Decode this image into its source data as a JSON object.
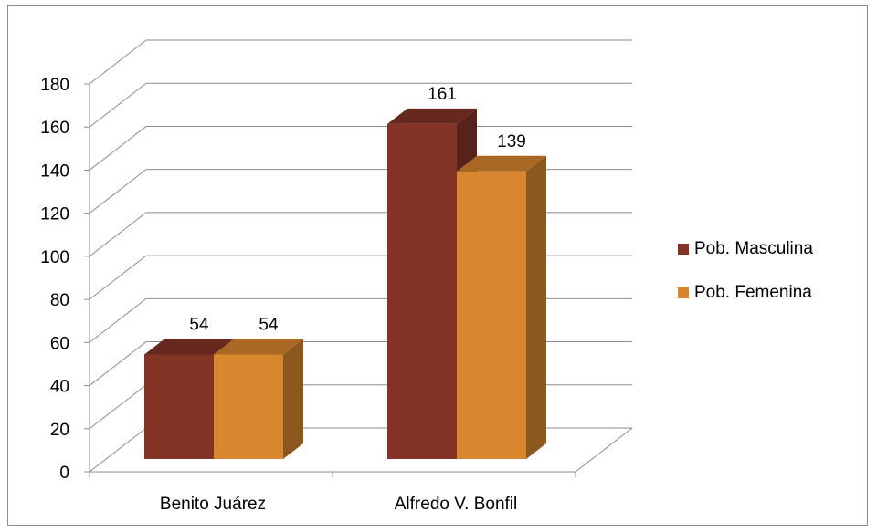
{
  "chart_data": {
    "type": "bar",
    "categories": [
      "Benito Juárez",
      "Alfredo V. Bonfil"
    ],
    "series": [
      {
        "name": "Pob. Masculina",
        "values": [
          54,
          161
        ],
        "color": "#843427"
      },
      {
        "name": "Pob. Femenina",
        "values": [
          54,
          139
        ],
        "color": "#d9872e"
      }
    ],
    "data_labels": [
      [
        "54",
        "161"
      ],
      [
        "54",
        "139"
      ]
    ],
    "ylim": [
      0,
      180
    ],
    "yticks": [
      0,
      20,
      40,
      60,
      80,
      100,
      120,
      140,
      160,
      180
    ],
    "grid": true,
    "legend_position": "right",
    "style": "3d-clustered"
  }
}
